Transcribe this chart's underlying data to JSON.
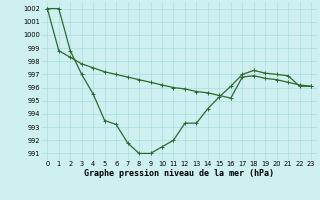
{
  "line1_x": [
    0,
    1,
    2,
    3,
    4,
    5,
    6,
    7,
    8,
    9,
    10,
    11,
    12,
    13,
    14,
    15,
    16,
    17,
    18,
    19,
    20,
    21,
    22,
    23
  ],
  "line1_y": [
    1002,
    1002,
    998.8,
    997.0,
    995.5,
    993.5,
    993.2,
    991.8,
    991.0,
    991.0,
    991.5,
    992.0,
    993.3,
    993.3,
    994.4,
    995.3,
    996.1,
    997.0,
    997.3,
    997.1,
    997.0,
    996.9,
    996.1,
    996.1
  ],
  "line2_x": [
    0,
    1,
    2,
    3,
    4,
    5,
    6,
    7,
    8,
    9,
    10,
    11,
    12,
    13,
    14,
    15,
    16,
    17,
    18,
    19,
    20,
    21,
    22,
    23
  ],
  "line2_y": [
    1002,
    998.8,
    998.3,
    997.8,
    997.5,
    997.2,
    997.0,
    996.8,
    996.6,
    996.4,
    996.2,
    996.0,
    995.9,
    995.7,
    995.6,
    995.4,
    995.2,
    996.8,
    996.9,
    996.7,
    996.6,
    996.4,
    996.2,
    996.1
  ],
  "line_color": "#2d6a2d",
  "bg_color": "#cef0f0",
  "grid_color": "#a8dede",
  "xlabel": "Graphe pression niveau de la mer (hPa)",
  "ylim": [
    990.5,
    1002.5
  ],
  "xlim": [
    -0.5,
    23.5
  ],
  "xticks": [
    0,
    1,
    2,
    3,
    4,
    5,
    6,
    7,
    8,
    9,
    10,
    11,
    12,
    13,
    14,
    15,
    16,
    17,
    18,
    19,
    20,
    21,
    22,
    23
  ],
  "yticks": [
    991,
    992,
    993,
    994,
    995,
    996,
    997,
    998,
    999,
    1000,
    1001,
    1002
  ],
  "marker": "+"
}
